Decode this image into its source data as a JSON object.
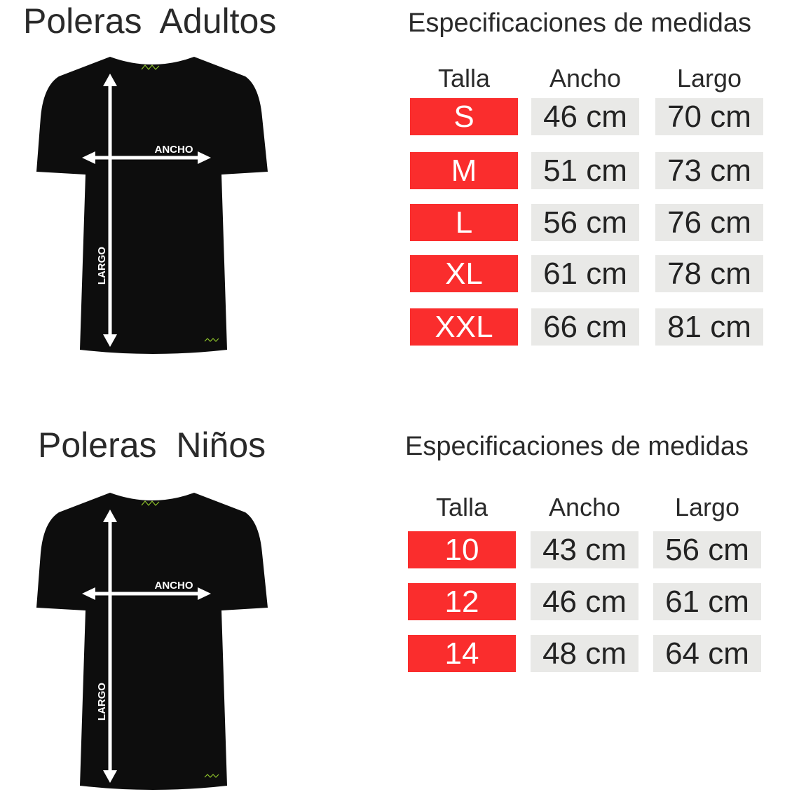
{
  "adults": {
    "title": "Poleras  Adultos",
    "spec_title": "Especificaciones de medidas",
    "headers": [
      "Talla",
      "Ancho",
      "Largo"
    ],
    "rows": [
      {
        "size": "S",
        "ancho": "46 cm",
        "largo": "70 cm"
      },
      {
        "size": "M",
        "ancho": "51 cm",
        "largo": "73 cm"
      },
      {
        "size": "L",
        "ancho": "56 cm",
        "largo": "76 cm"
      },
      {
        "size": "XL",
        "ancho": "61 cm",
        "largo": "78 cm"
      },
      {
        "size": "XXL",
        "ancho": "66 cm",
        "largo": "81 cm"
      }
    ],
    "diagram": {
      "ancho_label": "ANCHO",
      "largo_label": "LARGO"
    }
  },
  "kids": {
    "title": "Poleras  Niños",
    "spec_title": "Especificaciones de medidas",
    "headers": [
      "Talla",
      "Ancho",
      "Largo"
    ],
    "rows": [
      {
        "size": "10",
        "ancho": "43 cm",
        "largo": "56 cm"
      },
      {
        "size": "12",
        "ancho": "46 cm",
        "largo": "61 cm"
      },
      {
        "size": "14",
        "ancho": "48 cm",
        "largo": "64 cm"
      }
    ],
    "diagram": {
      "ancho_label": "ANCHO",
      "largo_label": "LARGO"
    }
  },
  "colors": {
    "size_cell": "#fa2d2d",
    "measure_cell": "#e9e9e7",
    "shirt": "#0d0d0d",
    "logo": "#8bbf2a"
  },
  "logo_text": "amexel"
}
